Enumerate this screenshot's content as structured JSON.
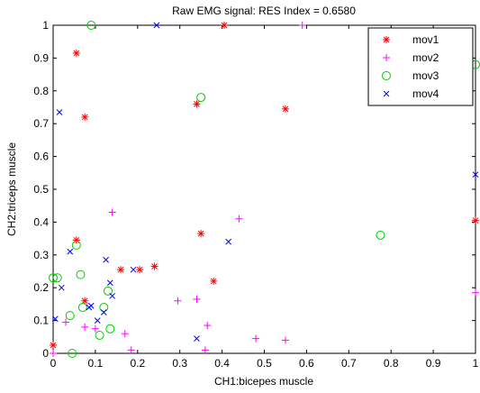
{
  "chart_data": {
    "type": "scatter",
    "title": "Raw EMG signal: RES Index = 0.6580",
    "xlabel": "CH1:bicepes muscle",
    "ylabel": "CH2:triceps muscle",
    "xlim": [
      0,
      1
    ],
    "ylim": [
      0,
      1
    ],
    "x_ticks": [
      "0",
      "0.1",
      "0.2",
      "0.3",
      "0.4",
      "0.5",
      "0.6",
      "0.7",
      "0.8",
      "0.9",
      "1"
    ],
    "y_ticks": [
      "0",
      "0.1",
      "0.2",
      "0.3",
      "0.4",
      "0.5",
      "0.6",
      "0.7",
      "0.8",
      "0.9",
      "1"
    ],
    "grid": false,
    "legend_position": "top-right",
    "series": [
      {
        "name": "mov1",
        "marker": "asterisk",
        "color": "#ff0000",
        "points": [
          [
            0.0,
            0.025
          ],
          [
            0.055,
            0.915
          ],
          [
            0.075,
            0.72
          ],
          [
            0.055,
            0.345
          ],
          [
            0.075,
            0.16
          ],
          [
            0.16,
            0.255
          ],
          [
            0.205,
            0.255
          ],
          [
            0.24,
            0.265
          ],
          [
            0.34,
            0.76
          ],
          [
            0.35,
            0.365
          ],
          [
            0.38,
            0.22
          ],
          [
            0.405,
            1.0
          ],
          [
            0.55,
            0.745
          ],
          [
            1.0,
            0.405
          ]
        ]
      },
      {
        "name": "mov2",
        "marker": "plus",
        "color": "#ff00ff",
        "points": [
          [
            0.0,
            0.0
          ],
          [
            0.03,
            0.095
          ],
          [
            0.075,
            0.08
          ],
          [
            0.1,
            0.075
          ],
          [
            0.14,
            0.43
          ],
          [
            0.17,
            0.06
          ],
          [
            0.185,
            0.01
          ],
          [
            0.295,
            0.16
          ],
          [
            0.34,
            0.165
          ],
          [
            0.36,
            0.01
          ],
          [
            0.365,
            0.085
          ],
          [
            0.44,
            0.41
          ],
          [
            0.48,
            0.045
          ],
          [
            0.55,
            0.04
          ],
          [
            0.59,
            1.0
          ],
          [
            1.0,
            0.185
          ]
        ]
      },
      {
        "name": "mov3",
        "marker": "circle",
        "color": "#00cc00",
        "points": [
          [
            0.0,
            0.23
          ],
          [
            0.01,
            0.23
          ],
          [
            0.04,
            0.115
          ],
          [
            0.045,
            0.0
          ],
          [
            0.055,
            0.33
          ],
          [
            0.065,
            0.24
          ],
          [
            0.07,
            0.14
          ],
          [
            0.09,
            1.0
          ],
          [
            0.11,
            0.055
          ],
          [
            0.12,
            0.14
          ],
          [
            0.13,
            0.19
          ],
          [
            0.135,
            0.075
          ],
          [
            0.35,
            0.78
          ],
          [
            0.775,
            0.36
          ],
          [
            1.0,
            0.88
          ]
        ]
      },
      {
        "name": "mov4",
        "marker": "x",
        "color": "#0000ff",
        "points": [
          [
            0.005,
            0.105
          ],
          [
            0.015,
            0.735
          ],
          [
            0.02,
            0.2
          ],
          [
            0.04,
            0.31
          ],
          [
            0.085,
            0.14
          ],
          [
            0.09,
            0.145
          ],
          [
            0.105,
            0.1
          ],
          [
            0.12,
            0.125
          ],
          [
            0.125,
            0.285
          ],
          [
            0.135,
            0.215
          ],
          [
            0.14,
            0.175
          ],
          [
            0.19,
            0.255
          ],
          [
            0.245,
            1.0
          ],
          [
            0.34,
            0.045
          ],
          [
            0.415,
            0.34
          ],
          [
            1.0,
            0.545
          ]
        ]
      }
    ]
  }
}
